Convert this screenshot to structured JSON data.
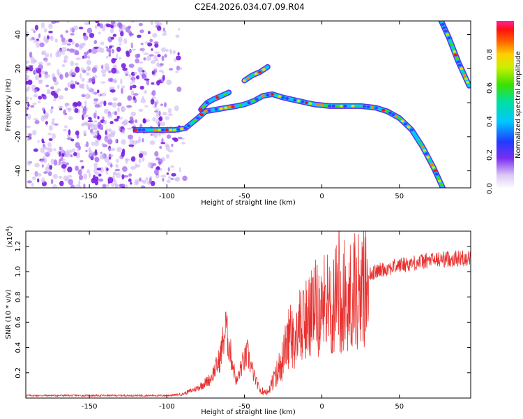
{
  "figure_title": "C2E4.2026.034.07.09.R04",
  "chart_data": [
    {
      "type": "heatmap",
      "name": "spectrogram",
      "xlabel": "Height of straight line (km)",
      "ylabel": "Frequency (Hz)",
      "xlim": [
        -191,
        96
      ],
      "ylim": [
        -50,
        48
      ],
      "xticks": [
        -150,
        -100,
        -50,
        0,
        50
      ],
      "yticks": [
        -40,
        -20,
        0,
        20,
        40
      ],
      "colorbar": {
        "label": "Normalized spectral amplitude",
        "ticks": [
          0.0,
          0.2,
          0.4,
          0.6,
          0.8
        ],
        "range": [
          0,
          1
        ]
      },
      "noise_region_x": [
        -191,
        -88
      ],
      "ridges": [
        {
          "name": "main-track",
          "points": [
            [
              -120,
              -16
            ],
            [
              -105,
              -16
            ],
            [
              -95,
              -16
            ],
            [
              -88,
              -15
            ],
            [
              -84,
              -12
            ],
            [
              -80,
              -9
            ],
            [
              -75,
              -5
            ],
            [
              -68,
              -4
            ],
            [
              -62,
              -3
            ],
            [
              -55,
              -2
            ],
            [
              -50,
              -1
            ],
            [
              -44,
              1
            ],
            [
              -38,
              4
            ],
            [
              -32,
              5
            ],
            [
              -25,
              3
            ],
            [
              -15,
              1
            ],
            [
              -5,
              -1
            ],
            [
              5,
              -2
            ],
            [
              15,
              -2
            ],
            [
              25,
              -2
            ],
            [
              35,
              -3
            ],
            [
              42,
              -5
            ],
            [
              50,
              -9
            ],
            [
              58,
              -16
            ],
            [
              65,
              -26
            ],
            [
              72,
              -38
            ],
            [
              78,
              -50
            ]
          ]
        },
        {
          "name": "upper-branch",
          "points": [
            [
              -78,
              -4
            ],
            [
              -74,
              0
            ],
            [
              -70,
              2
            ],
            [
              -65,
              4
            ],
            [
              -60,
              6
            ]
          ]
        },
        {
          "name": "high-branch",
          "points": [
            [
              -50,
              13
            ],
            [
              -45,
              16
            ],
            [
              -40,
              18
            ],
            [
              -35,
              21
            ]
          ]
        },
        {
          "name": "right-track",
          "points": [
            [
              76,
              50
            ],
            [
              82,
              38
            ],
            [
              88,
              24
            ],
            [
              95,
              10
            ]
          ]
        }
      ]
    },
    {
      "type": "line",
      "name": "snr-trace",
      "xlabel": "Height of straight line (km)",
      "ylabel": "SNR (10 * v/v)",
      "scale_label": "(x10",
      "scale_exponent": "4",
      "scale_close": ")",
      "xlim": [
        -191,
        96
      ],
      "ylim": [
        0,
        1.32
      ],
      "xticks": [
        -150,
        -100,
        -50,
        0,
        50
      ],
      "yticks": [
        0.2,
        0.4,
        0.6,
        0.8,
        1.0,
        1.2
      ],
      "color": "#e8312f",
      "envelope": [
        [
          -191,
          0.02
        ],
        [
          -100,
          0.02
        ],
        [
          -90,
          0.03
        ],
        [
          -80,
          0.08
        ],
        [
          -72,
          0.15
        ],
        [
          -66,
          0.3
        ],
        [
          -62,
          0.55
        ],
        [
          -58,
          0.3
        ],
        [
          -55,
          0.12
        ],
        [
          -52,
          0.25
        ],
        [
          -48,
          0.35
        ],
        [
          -44,
          0.18
        ],
        [
          -40,
          0.06
        ],
        [
          -35,
          0.06
        ],
        [
          -30,
          0.18
        ],
        [
          -25,
          0.35
        ],
        [
          -20,
          0.55
        ],
        [
          -15,
          0.6
        ],
        [
          -10,
          0.65
        ],
        [
          -5,
          0.75
        ],
        [
          0,
          0.78
        ],
        [
          5,
          0.82
        ],
        [
          10,
          0.85
        ],
        [
          15,
          0.88
        ],
        [
          20,
          0.92
        ],
        [
          30,
          0.98
        ],
        [
          40,
          1.02
        ],
        [
          50,
          1.05
        ],
        [
          60,
          1.07
        ],
        [
          70,
          1.09
        ],
        [
          80,
          1.1
        ],
        [
          96,
          1.11
        ]
      ],
      "spikes": [
        [
          -62,
          0.68
        ],
        [
          -21,
          0.62
        ],
        [
          -12,
          0.85
        ],
        [
          -6,
          0.95
        ],
        [
          2,
          0.88
        ],
        [
          11,
          1.32
        ],
        [
          17,
          0.9
        ],
        [
          24,
          0.85
        ]
      ]
    }
  ]
}
